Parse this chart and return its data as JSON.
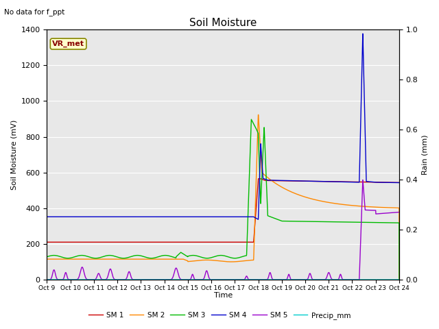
{
  "title": "Soil Moisture",
  "ylabel_left": "Soil Moisture (mV)",
  "ylabel_right": "Rain (mm)",
  "xlabel": "Time",
  "annotation_text": "No data for f_ppt",
  "vr_met_label": "VR_met",
  "x_tick_labels": [
    "Oct 9",
    "Oct 10",
    "Oct 11",
    "Oct 12",
    "Oct 13",
    "Oct 14",
    "Oct 15",
    "Oct 16",
    "Oct 17",
    "Oct 18",
    "Oct 19",
    "Oct 20",
    "Oct 21",
    "Oct 22",
    "Oct 23",
    "Oct 24"
  ],
  "ylim_left": [
    0,
    1400
  ],
  "ylim_right": [
    0,
    1.0
  ],
  "colors": {
    "SM1": "#cc0000",
    "SM2": "#ff8800",
    "SM3": "#00bb00",
    "SM4": "#0000cc",
    "SM5": "#9900cc",
    "Precip": "#00cccc"
  },
  "legend_labels": [
    "SM 1",
    "SM 2",
    "SM 3",
    "SM 4",
    "SM 5",
    "Precip_mm"
  ],
  "plot_bg_color": "#e8e8e8"
}
